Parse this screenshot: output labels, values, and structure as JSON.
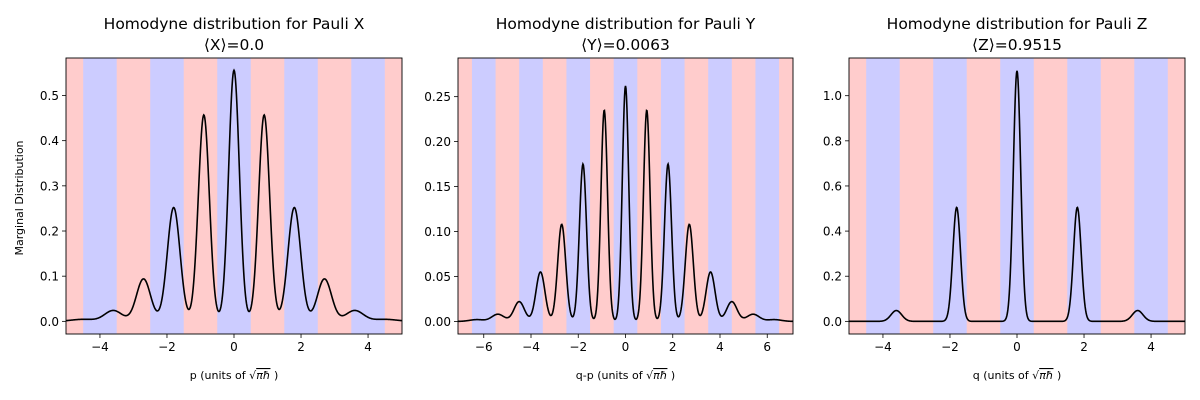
{
  "figure": {
    "ylabel": "Marginal Distribution"
  },
  "chart_data": [
    {
      "type": "line",
      "title": "Homodyne distribution for Pauli X",
      "subtitle": "⟨X⟩=0.0",
      "xlabel_prefix": "p (units of ",
      "xlim": [
        -5.013,
        5.013
      ],
      "ylim": [
        -0.028,
        0.583
      ],
      "xticks": [
        -4,
        -2,
        0,
        2,
        4
      ],
      "yticks": [
        0.0,
        0.1,
        0.2,
        0.3,
        0.4,
        0.5
      ],
      "ytick_labels": [
        "0.0",
        "0.1",
        "0.2",
        "0.3",
        "0.4",
        "0.5"
      ],
      "band_edges_start": -4.5,
      "band_width": 1.0,
      "band_count": 9,
      "band_first": "blue",
      "peaks": [
        {
          "x": -4.5,
          "h": 0.0045,
          "s": 0.35
        },
        {
          "x": -3.6,
          "h": 0.024,
          "s": 0.26
        },
        {
          "x": -2.7,
          "h": 0.094,
          "s": 0.21
        },
        {
          "x": -1.8,
          "h": 0.252,
          "s": 0.19
        },
        {
          "x": -0.9,
          "h": 0.457,
          "s": 0.165
        },
        {
          "x": 0.0,
          "h": 0.556,
          "s": 0.16
        },
        {
          "x": 0.9,
          "h": 0.457,
          "s": 0.165
        },
        {
          "x": 1.8,
          "h": 0.252,
          "s": 0.19
        },
        {
          "x": 2.7,
          "h": 0.094,
          "s": 0.21
        },
        {
          "x": 3.6,
          "h": 0.024,
          "s": 0.26
        },
        {
          "x": 4.5,
          "h": 0.0045,
          "s": 0.35
        }
      ]
    },
    {
      "type": "line",
      "title": "Homodyne distribution for Pauli Y",
      "subtitle": "⟨Y⟩=0.0063",
      "xlabel_prefix": "q-p (units of ",
      "xlim": [
        -7.09,
        7.09
      ],
      "ylim": [
        -0.014,
        0.293
      ],
      "xticks": [
        -6,
        -4,
        -2,
        0,
        2,
        4,
        6
      ],
      "yticks": [
        0.0,
        0.05,
        0.1,
        0.15,
        0.2,
        0.25
      ],
      "ytick_labels": [
        "0.00",
        "0.05",
        "0.10",
        "0.15",
        "0.20",
        "0.25"
      ],
      "band_edges_start": -6.5,
      "band_width": 1.0,
      "band_count": 13,
      "band_first": "blue",
      "peaks": [
        {
          "x": -6.3,
          "h": 0.002,
          "s": 0.3
        },
        {
          "x": -5.4,
          "h": 0.008,
          "s": 0.26
        },
        {
          "x": -4.5,
          "h": 0.022,
          "s": 0.22
        },
        {
          "x": -3.6,
          "h": 0.055,
          "s": 0.19
        },
        {
          "x": -2.7,
          "h": 0.108,
          "s": 0.17
        },
        {
          "x": -1.8,
          "h": 0.175,
          "s": 0.15
        },
        {
          "x": -0.9,
          "h": 0.235,
          "s": 0.14
        },
        {
          "x": 0.0,
          "h": 0.262,
          "s": 0.135
        },
        {
          "x": 0.9,
          "h": 0.235,
          "s": 0.14
        },
        {
          "x": 1.8,
          "h": 0.175,
          "s": 0.15
        },
        {
          "x": 2.7,
          "h": 0.108,
          "s": 0.17
        },
        {
          "x": 3.6,
          "h": 0.055,
          "s": 0.19
        },
        {
          "x": 4.5,
          "h": 0.022,
          "s": 0.22
        },
        {
          "x": 5.4,
          "h": 0.008,
          "s": 0.26
        },
        {
          "x": 6.3,
          "h": 0.002,
          "s": 0.3
        }
      ]
    },
    {
      "type": "line",
      "title": "Homodyne distribution for Pauli Z",
      "subtitle": "⟨Z⟩=0.9515",
      "xlabel_prefix": "q (units of ",
      "xlim": [
        -5.013,
        5.013
      ],
      "ylim": [
        -0.056,
        1.167
      ],
      "xticks": [
        -4,
        -2,
        0,
        2,
        4
      ],
      "yticks": [
        0.0,
        0.2,
        0.4,
        0.6,
        0.8,
        1.0
      ],
      "ytick_labels": [
        "0.0",
        "0.2",
        "0.4",
        "0.6",
        "0.8",
        "1.0"
      ],
      "band_edges_start": -4.5,
      "band_width": 1.0,
      "band_count": 9,
      "band_first": "blue",
      "peaks": [
        {
          "x": -3.6,
          "h": 0.048,
          "s": 0.16
        },
        {
          "x": -1.8,
          "h": 0.505,
          "s": 0.115
        },
        {
          "x": 0.0,
          "h": 1.11,
          "s": 0.11
        },
        {
          "x": 1.8,
          "h": 0.505,
          "s": 0.115
        },
        {
          "x": 3.6,
          "h": 0.048,
          "s": 0.16
        }
      ]
    }
  ],
  "colors": {
    "band_blue": "#ccccff",
    "band_red": "#ffcccc",
    "curve": "#000000"
  }
}
